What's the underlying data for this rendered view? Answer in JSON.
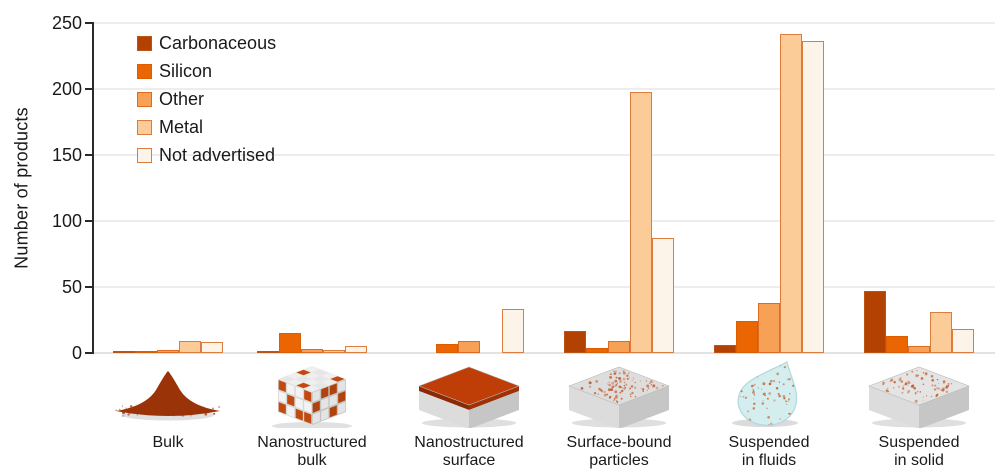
{
  "chart_data": {
    "type": "bar",
    "title": "",
    "ylabel": "Number of products",
    "xlabel": "",
    "ylim": [
      0,
      250
    ],
    "yticks": [
      0,
      50,
      100,
      150,
      200,
      250
    ],
    "grid": true,
    "legend_position": "top-left-inside",
    "categories": [
      {
        "label": "Bulk",
        "lines": [
          "Bulk"
        ],
        "icon": "powder-pile-icon"
      },
      {
        "label": "Nanostructured bulk",
        "lines": [
          "Nanostructured",
          "bulk"
        ],
        "icon": "nanostructured-cube-icon"
      },
      {
        "label": "Nanostructured surface",
        "lines": [
          "Nanostructured",
          "surface"
        ],
        "icon": "coated-surface-icon"
      },
      {
        "label": "Surface-bound particles",
        "lines": [
          "Surface-bound",
          "particles"
        ],
        "icon": "speckled-surface-icon"
      },
      {
        "label": "Suspended in fluids",
        "lines": [
          "Suspended",
          "in fluids"
        ],
        "icon": "droplet-icon"
      },
      {
        "label": "Suspended in solid",
        "lines": [
          "Suspended",
          "in solid"
        ],
        "icon": "particles-in-solid-icon"
      }
    ],
    "series": [
      {
        "name": "Carbonaceous",
        "fill": "#B34202",
        "stroke": "#BC5414",
        "values": [
          1,
          1,
          0,
          17,
          6,
          47
        ]
      },
      {
        "name": "Silicon",
        "fill": "#EB6502",
        "stroke": "#DC5E00",
        "values": [
          1,
          15,
          7,
          4,
          24,
          13
        ]
      },
      {
        "name": "Other",
        "fill": "#F6A156",
        "stroke": "#DF6B1E",
        "values": [
          2,
          3,
          9,
          9,
          38,
          5
        ]
      },
      {
        "name": "Metal",
        "fill": "#FBCB98",
        "stroke": "#DD7C3F",
        "values": [
          9,
          2,
          0,
          198,
          242,
          31
        ]
      },
      {
        "name": "Not advertised",
        "fill": "#FDF4E9",
        "stroke": "#DD7C3F",
        "values": [
          8,
          5,
          33,
          87,
          236,
          18
        ]
      }
    ],
    "icon_colors": {
      "powder": "#9B3309",
      "cube_orange": "#C24A0E",
      "surface_top": "#BF3D07",
      "particle_dot": "#C05520",
      "fluid_blue": "#D4EDEE",
      "slab_gray": "#DCDCDC"
    }
  }
}
